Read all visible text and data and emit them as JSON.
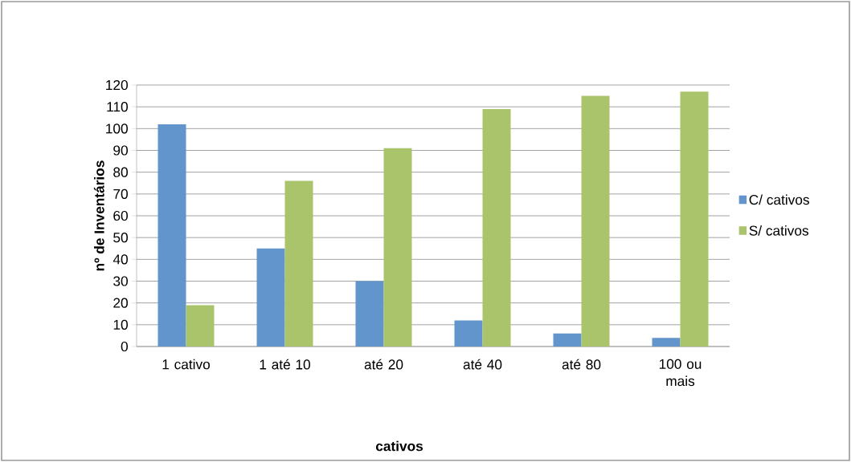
{
  "chart_data": {
    "type": "bar",
    "xlabel": "cativos",
    "ylabel": "nº de Inventários",
    "categories": [
      "1 cativo",
      "1 até 10",
      "até 20",
      "até 40",
      "até 80",
      "100 ou mais"
    ],
    "series": [
      {
        "name": "C/ cativos",
        "color": "#6195cb",
        "values": [
          102,
          45,
          30,
          12,
          6,
          4
        ]
      },
      {
        "name": "S/ cativos",
        "color": "#a9c46a",
        "values": [
          19,
          76,
          91,
          109,
          115,
          117
        ]
      }
    ],
    "ylim": [
      0,
      120
    ],
    "yticks": [
      0,
      10,
      20,
      30,
      40,
      50,
      60,
      70,
      80,
      90,
      100,
      110,
      120
    ],
    "grid": "y",
    "legend": "right"
  }
}
